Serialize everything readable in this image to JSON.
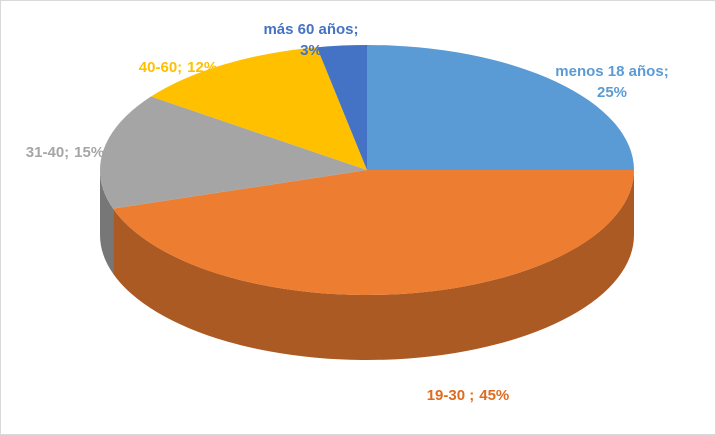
{
  "chart_data": {
    "type": "pie3d",
    "categories": [
      "menos 18 años",
      "19-30 ",
      "31-40",
      "40-60",
      "más 60 años"
    ],
    "values": [
      25,
      45,
      15,
      12,
      3
    ],
    "value_labels": [
      "25%",
      "45%",
      "15%",
      "12%",
      "3%"
    ],
    "label_separator": ";",
    "colors": [
      "#5b9bd5",
      "#ed7d31",
      "#a5a5a5",
      "#ffc000",
      "#4472c4"
    ]
  }
}
